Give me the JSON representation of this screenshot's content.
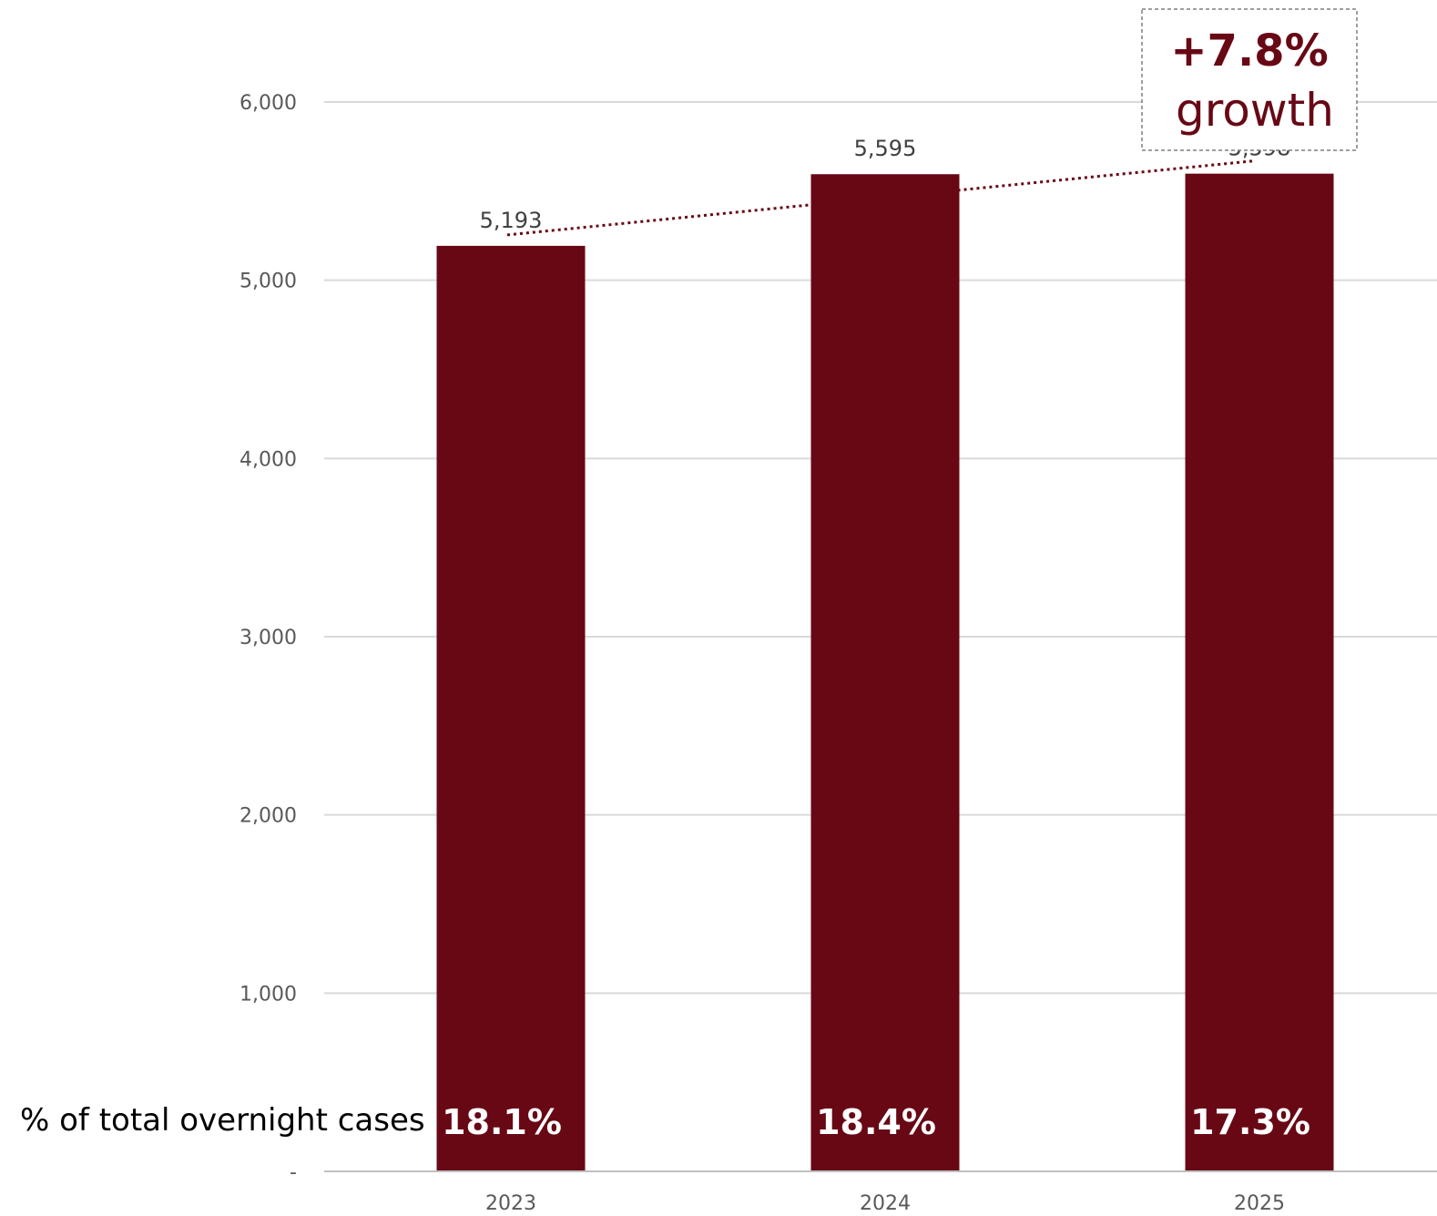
{
  "chart_data": {
    "type": "bar",
    "categories": [
      "2023",
      "2024",
      "2025"
    ],
    "values": [
      5193,
      5595,
      5598
    ],
    "data_labels": [
      "5,193",
      "5,595",
      "5,598"
    ],
    "ylim": [
      0,
      6000
    ],
    "yticks": [
      0,
      1000,
      2000,
      3000,
      4000,
      5000,
      6000
    ],
    "ytick_labels": [
      "-",
      "1,000",
      "2,000",
      "3,000",
      "4,000",
      "5,000",
      "6,000"
    ],
    "grid": true,
    "share_row": {
      "label": "% of total overnight cases",
      "values": [
        "18.1%",
        "18.4%",
        "17.3%"
      ]
    },
    "trendline": {
      "style": "dotted"
    },
    "annotation": {
      "line1": "+7.8%",
      "line2": "growth"
    },
    "colors": {
      "bar": "#680815",
      "grid": "#d9d9d9",
      "axis": "#bfbfbf",
      "annotation": "#680815",
      "trend": "#680815"
    }
  }
}
